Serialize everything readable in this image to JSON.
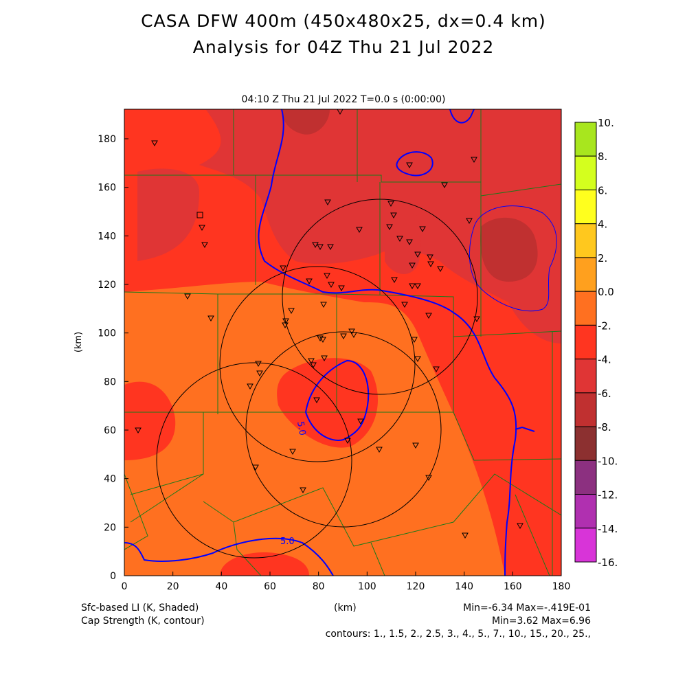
{
  "title": {
    "line1": "CASA DFW 400m (450x480x25, dx=0.4 km)",
    "line2": "Analysis for 04Z Thu 21 Jul 2022"
  },
  "subtitle": "04:10 Z Thu 21 Jul 2022    T=0.0 s (0:00:00)",
  "footer": {
    "field1": "Sfc-based LI (K, Shaded)",
    "field2": "Cap Strength (K, contour)",
    "xunit": "(km)",
    "stats1": "Min=-6.34 Max=-.419E-01",
    "stats2": "Min=3.62 Max=6.96",
    "contours": "contours: 1., 1.5, 2., 2.5, 3., 4., 5., 7., 10., 15., 20., 25.,"
  },
  "chart_data": {
    "type": "heatmap",
    "title": "CASA DFW 400m (450x480x25, dx=0.4 km) Analysis for 04Z Thu 21 Jul 2022",
    "xlabel": "(km)",
    "ylabel": "(km)",
    "xlim": [
      0,
      180
    ],
    "ylim": [
      0,
      192
    ],
    "xticks": [
      "0",
      "20",
      "40",
      "60",
      "80",
      "100",
      "120",
      "140",
      "160",
      "180"
    ],
    "yticks": [
      "0",
      "20",
      "40",
      "60",
      "80",
      "100",
      "120",
      "140",
      "160",
      "180"
    ],
    "colorbar": {
      "labels": [
        "10.",
        "8.",
        "6.",
        "4.",
        "2.",
        "0.0",
        "-2.",
        "-4.",
        "-6.",
        "-8.",
        "-10.",
        "-12.",
        "-14.",
        "-16."
      ],
      "colors": [
        "#a8e61e",
        "#d4ff1e",
        "#ffff1e",
        "#ffc81e",
        "#ffa01e",
        "#ff7020",
        "#ff3520",
        "#e03535",
        "#c03030",
        "#8c3030",
        "#8c3080",
        "#b030b0",
        "#d834d8"
      ]
    },
    "contour_labels": [
      "5.0",
      "5.0"
    ]
  }
}
